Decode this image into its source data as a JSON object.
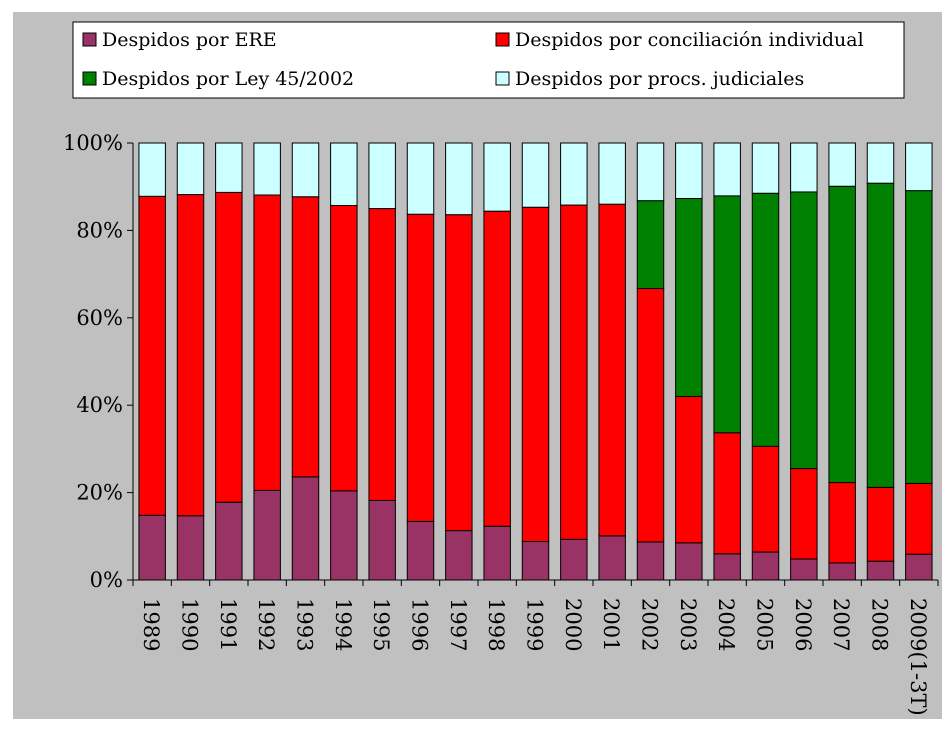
{
  "chart_data": {
    "type": "bar",
    "stacked": true,
    "percent": true,
    "categories": [
      "1989",
      "1990",
      "1991",
      "1992",
      "1993",
      "1994",
      "1995",
      "1996",
      "1997",
      "1998",
      "1999",
      "2000",
      "2001",
      "2002",
      "2003",
      "2004",
      "2005",
      "2006",
      "2007",
      "2008",
      "2009(1-3T)"
    ],
    "series": [
      {
        "name": "Despidos por ERE",
        "color": "#993366",
        "values": [
          14.8,
          14.7,
          17.8,
          20.5,
          23.6,
          20.4,
          18.2,
          13.4,
          11.3,
          12.3,
          8.8,
          9.3,
          10.1,
          8.7,
          8.5,
          6.0,
          6.4,
          4.8,
          3.9,
          4.3,
          5.9
        ]
      },
      {
        "name": "Despidos por conciliación individual",
        "color": "#ff0000",
        "values": [
          73.0,
          73.5,
          70.9,
          67.6,
          64.1,
          65.3,
          66.8,
          70.3,
          72.3,
          72.1,
          76.5,
          76.5,
          75.9,
          58.0,
          33.5,
          27.7,
          24.2,
          20.7,
          18.4,
          16.9,
          16.2
        ]
      },
      {
        "name": "Despidos por Ley 45/2002",
        "color": "#008000",
        "values": [
          0,
          0,
          0,
          0,
          0,
          0,
          0,
          0,
          0,
          0,
          0,
          0,
          0,
          20.1,
          45.3,
          54.2,
          57.9,
          63.3,
          67.8,
          69.6,
          67.0
        ]
      },
      {
        "name": "Despidos por procs. judiciales",
        "color": "#ccffff",
        "values": [
          12.2,
          11.8,
          11.3,
          11.9,
          12.3,
          14.3,
          15.0,
          16.3,
          16.4,
          15.6,
          14.7,
          14.2,
          14.0,
          13.2,
          12.7,
          12.1,
          11.5,
          11.2,
          9.9,
          9.2,
          10.9
        ]
      }
    ],
    "y_ticks": [
      "0%",
      "20%",
      "40%",
      "60%",
      "80%",
      "100%"
    ],
    "ylim": [
      0,
      100
    ],
    "legend_position": "top",
    "grid": false,
    "plot_background": "#c0c0c0",
    "title": "",
    "xlabel": "",
    "ylabel": ""
  }
}
